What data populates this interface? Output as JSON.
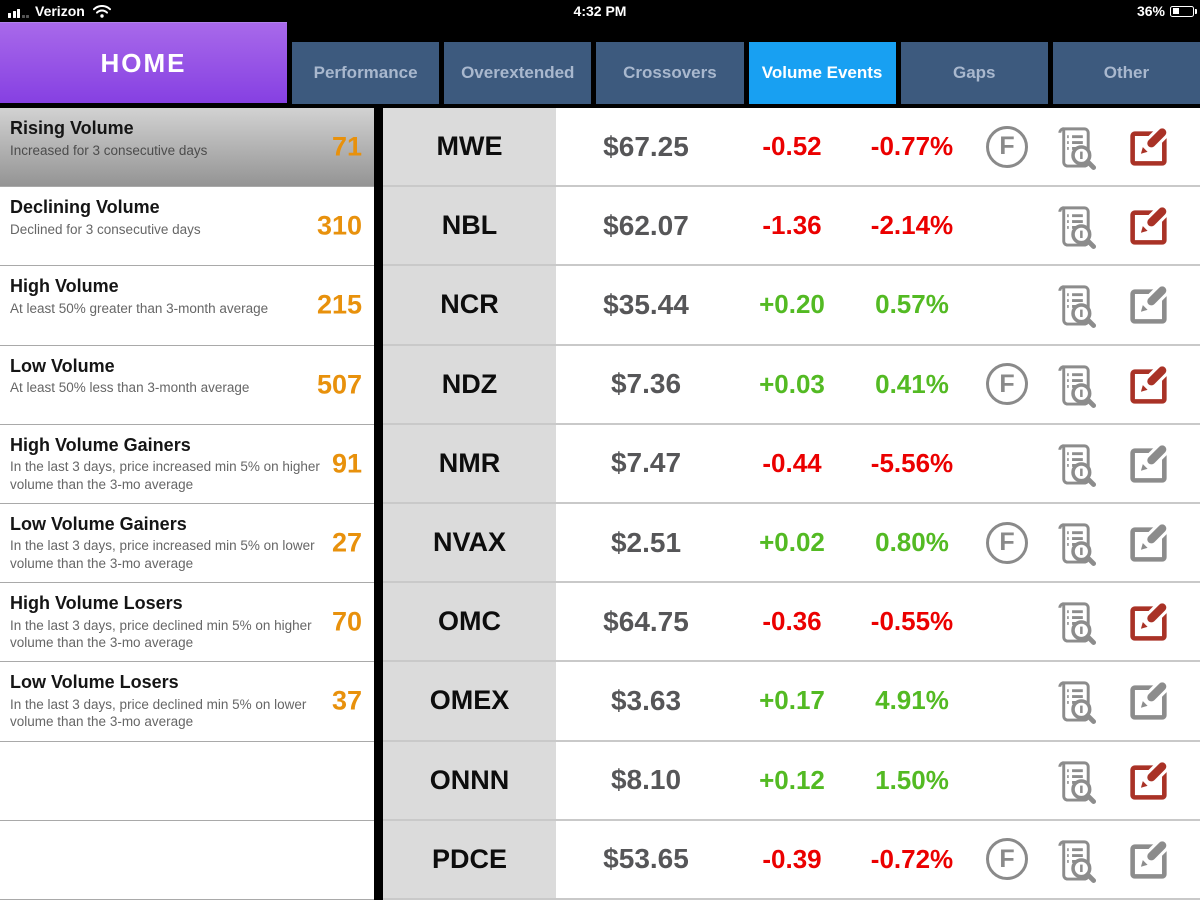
{
  "status_bar": {
    "carrier": "Verizon",
    "time": "4:32 PM",
    "battery_percent": "36%"
  },
  "header": {
    "home_label": "HOME",
    "tabs": [
      {
        "label": "Performance",
        "active": false
      },
      {
        "label": "Overextended",
        "active": false
      },
      {
        "label": "Crossovers",
        "active": false
      },
      {
        "label": "Volume Events",
        "active": true
      },
      {
        "label": "Gaps",
        "active": false
      },
      {
        "label": "Other",
        "active": false
      }
    ]
  },
  "sidebar": {
    "selected_index": 0,
    "empty_rows": 2,
    "items": [
      {
        "title": "Rising Volume",
        "subtitle": "Increased for 3 consecutive days",
        "count": "71"
      },
      {
        "title": "Declining Volume",
        "subtitle": "Declined for 3 consecutive days",
        "count": "310"
      },
      {
        "title": "High Volume",
        "subtitle": "At least 50% greater than 3-month average",
        "count": "215"
      },
      {
        "title": "Low Volume",
        "subtitle": "At least 50% less than 3-month average",
        "count": "507"
      },
      {
        "title": "High Volume Gainers",
        "subtitle": "In the last 3 days, price increased min 5% on higher volume than the 3-mo average",
        "count": "91"
      },
      {
        "title": "Low Volume Gainers",
        "subtitle": "In the last 3 days, price increased min 5% on lower volume than the 3-mo average",
        "count": "27"
      },
      {
        "title": "High Volume Losers",
        "subtitle": "In the last 3 days, price declined min 5% on higher volume than the 3-mo average",
        "count": "70"
      },
      {
        "title": "Low Volume Losers",
        "subtitle": "In the last 3 days, price declined min 5% on lower volume than the 3-mo average",
        "count": "37"
      }
    ]
  },
  "table": {
    "f_badge_label": "F",
    "rows": [
      {
        "ticker": "MWE",
        "price": "$67.25",
        "change": "-0.52",
        "change_pct": "-0.77%",
        "direction": "down",
        "flagged": true,
        "edit_style": "red"
      },
      {
        "ticker": "NBL",
        "price": "$62.07",
        "change": "-1.36",
        "change_pct": "-2.14%",
        "direction": "down",
        "flagged": false,
        "edit_style": "red"
      },
      {
        "ticker": "NCR",
        "price": "$35.44",
        "change": "+0.20",
        "change_pct": "0.57%",
        "direction": "up",
        "flagged": false,
        "edit_style": "gray"
      },
      {
        "ticker": "NDZ",
        "price": "$7.36",
        "change": "+0.03",
        "change_pct": "0.41%",
        "direction": "up",
        "flagged": true,
        "edit_style": "red"
      },
      {
        "ticker": "NMR",
        "price": "$7.47",
        "change": "-0.44",
        "change_pct": "-5.56%",
        "direction": "down",
        "flagged": false,
        "edit_style": "gray"
      },
      {
        "ticker": "NVAX",
        "price": "$2.51",
        "change": "+0.02",
        "change_pct": "0.80%",
        "direction": "up",
        "flagged": true,
        "edit_style": "gray"
      },
      {
        "ticker": "OMC",
        "price": "$64.75",
        "change": "-0.36",
        "change_pct": "-0.55%",
        "direction": "down",
        "flagged": false,
        "edit_style": "red"
      },
      {
        "ticker": "OMEX",
        "price": "$3.63",
        "change": "+0.17",
        "change_pct": "4.91%",
        "direction": "up",
        "flagged": false,
        "edit_style": "gray"
      },
      {
        "ticker": "ONNN",
        "price": "$8.10",
        "change": "+0.12",
        "change_pct": "1.50%",
        "direction": "up",
        "flagged": false,
        "edit_style": "red"
      },
      {
        "ticker": "PDCE",
        "price": "$53.65",
        "change": "-0.39",
        "change_pct": "-0.72%",
        "direction": "down",
        "flagged": true,
        "edit_style": "gray"
      }
    ]
  },
  "colors": {
    "count_orange": "#E8910C",
    "loss_red": "#EB0000",
    "gain_green": "#53BA23",
    "active_tab_blue": "#18A0F2",
    "inactive_tab_blue": "#3D5A7E",
    "edit_icon_red": "#A93226",
    "icon_gray": "#8C8C8C",
    "home_purple_top": "#A869EA",
    "home_purple_bottom": "#8640E2"
  }
}
